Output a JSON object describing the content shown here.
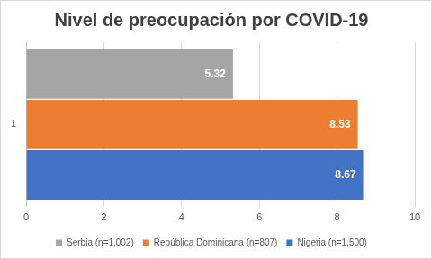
{
  "chart_data": {
    "type": "bar",
    "title": "Nivel de preocupación por COVID-19",
    "orientation": "horizontal",
    "categories": [
      "1"
    ],
    "series": [
      {
        "name": "Serbia (n=1,002)",
        "color": "#a5a5a5",
        "values": [
          5.32
        ]
      },
      {
        "name": "República Dominicana (n=807)",
        "color": "#ed7d31",
        "values": [
          8.53
        ]
      },
      {
        "name": "Nigeria (n=1,500)",
        "color": "#4472c4",
        "values": [
          8.67
        ]
      }
    ],
    "xlim": [
      0,
      10
    ],
    "xticks": [
      0,
      2,
      4,
      6,
      8,
      10
    ],
    "grid": true,
    "legend": "bottom",
    "data_labels": true
  }
}
